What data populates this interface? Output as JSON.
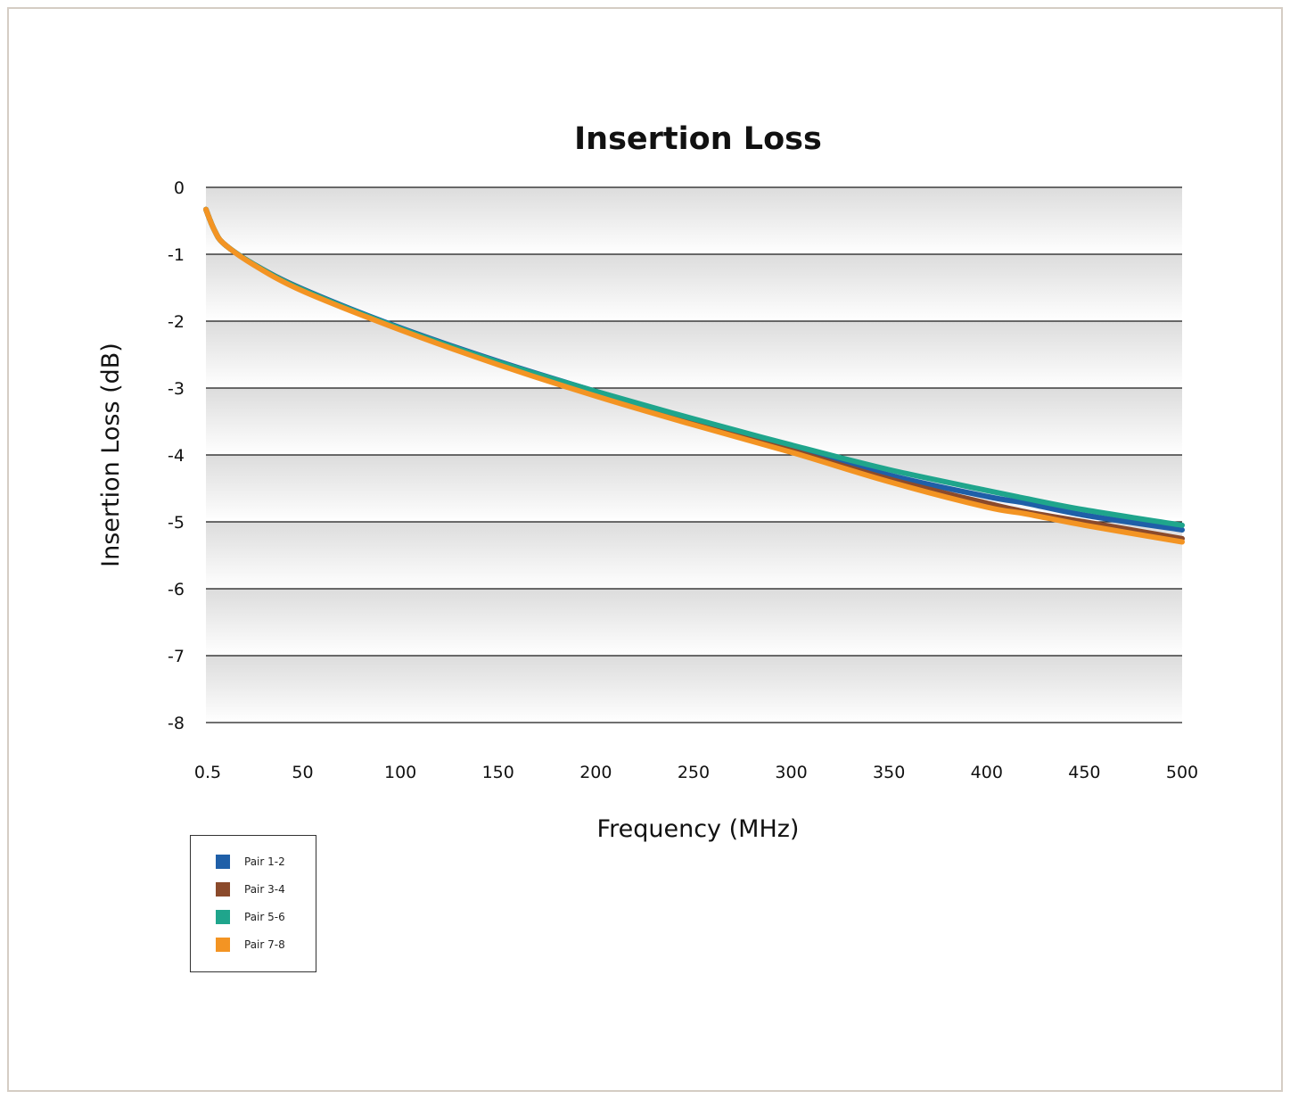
{
  "chart_data": {
    "type": "line",
    "title": "Insertion Loss",
    "xlabel": "Frequency (MHz)",
    "ylabel": "Insertion Loss (dB)",
    "xlim": [
      0.5,
      500
    ],
    "ylim": [
      -8,
      0
    ],
    "x_ticks": [
      0.5,
      50,
      100,
      150,
      200,
      250,
      300,
      350,
      400,
      450,
      500
    ],
    "x_tick_labels": [
      "0.5",
      "50",
      "100",
      "150",
      "200",
      "250",
      "300",
      "350",
      "400",
      "450",
      "500"
    ],
    "y_ticks": [
      0,
      -1,
      -2,
      -3,
      -4,
      -5,
      -6,
      -7,
      -8
    ],
    "y_tick_labels": [
      "0",
      "-1",
      "-2",
      "-3",
      "-4",
      "-5",
      "-6",
      "-7",
      "-8"
    ],
    "grid": true,
    "legend_position": "bottom-left",
    "x": [
      0.5,
      5,
      10,
      25,
      50,
      100,
      150,
      200,
      250,
      300,
      350,
      400,
      420,
      450,
      500
    ],
    "series": [
      {
        "name": "Pair 1-2",
        "color": "#1f5fa8",
        "values": [
          -0.33,
          -0.65,
          -0.85,
          -1.15,
          -1.52,
          -2.1,
          -2.6,
          -3.05,
          -3.48,
          -3.88,
          -4.3,
          -4.62,
          -4.72,
          -4.9,
          -5.12
        ]
      },
      {
        "name": "Pair 3-4",
        "color": "#8b4a2b",
        "values": [
          -0.33,
          -0.65,
          -0.85,
          -1.15,
          -1.53,
          -2.12,
          -2.62,
          -3.08,
          -3.52,
          -3.93,
          -4.36,
          -4.72,
          -4.85,
          -5.0,
          -5.25
        ]
      },
      {
        "name": "Pair 5-6",
        "color": "#1fa58c",
        "values": [
          -0.33,
          -0.65,
          -0.85,
          -1.15,
          -1.53,
          -2.11,
          -2.61,
          -3.05,
          -3.46,
          -3.85,
          -4.22,
          -4.53,
          -4.65,
          -4.82,
          -5.05
        ]
      },
      {
        "name": "Pair 7-8",
        "color": "#f39423",
        "values": [
          -0.33,
          -0.65,
          -0.85,
          -1.16,
          -1.55,
          -2.13,
          -2.65,
          -3.12,
          -3.55,
          -3.96,
          -4.4,
          -4.78,
          -4.88,
          -5.05,
          -5.3
        ]
      }
    ]
  }
}
